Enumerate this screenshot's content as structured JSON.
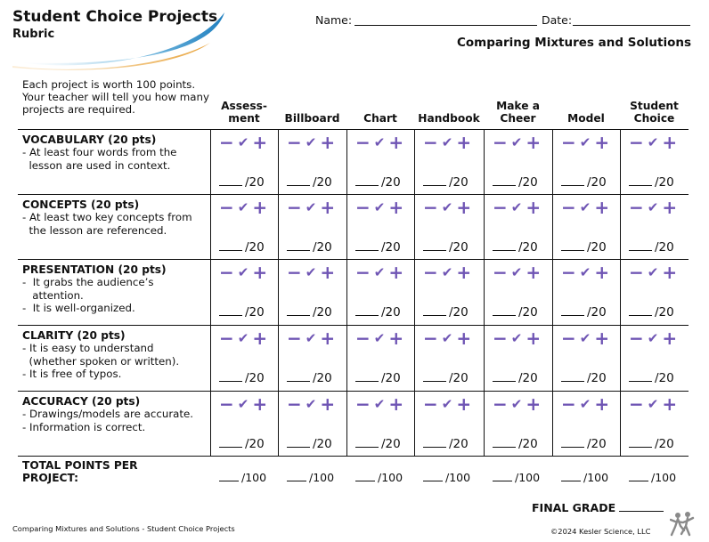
{
  "header": {
    "title": "Student Choice Projects",
    "subtitle": "Rubric",
    "name_label": "Name:",
    "date_label": "Date:",
    "unit_title": "Comparing Mixtures and Solutions"
  },
  "intro": "Each project is worth 100 points. Your teacher will tell you how many projects are required.",
  "columns": [
    {
      "label": "Assess-\nment"
    },
    {
      "label": "Billboard"
    },
    {
      "label": "Chart"
    },
    {
      "label": "Handbook"
    },
    {
      "label": "Make a\nCheer"
    },
    {
      "label": "Model"
    },
    {
      "label": "Student\nChoice"
    }
  ],
  "criteria": [
    {
      "title": "VOCABULARY (20 pts)",
      "bullets": [
        "- At least four words from the",
        "  lesson are used in context."
      ]
    },
    {
      "title": "CONCEPTS (20 pts)",
      "bullets": [
        "- At least two key concepts from",
        "  the lesson are referenced."
      ]
    },
    {
      "title": "PRESENTATION (20 pts)",
      "bullets": [
        "-  It grabs the audience’s",
        "   attention.",
        "-  It is well-organized."
      ]
    },
    {
      "title": "CLARITY (20 pts)",
      "bullets": [
        "- It is easy to understand",
        "  (whether spoken or written).",
        "- It is free of typos."
      ]
    },
    {
      "title": "ACCURACY (20 pts)",
      "bullets": [
        "- Drawings/models are accurate.",
        "- Information is correct."
      ]
    }
  ],
  "marks": {
    "minus": "−",
    "check": "✔",
    "plus": "+"
  },
  "score_suffix": "/20",
  "total": {
    "label": "TOTAL POINTS PER\nPROJECT:",
    "suffix": "/100"
  },
  "final_grade_label": "FINAL GRADE",
  "footer": {
    "left": "Comparing Mixtures and Solutions - Student Choice Projects",
    "right": "©2024  Kesler Science, LLC"
  },
  "colors": {
    "accent": "#6f55b4",
    "swoosh_blue": "#2f8fc8",
    "swoosh_gold": "#e8a33a"
  }
}
